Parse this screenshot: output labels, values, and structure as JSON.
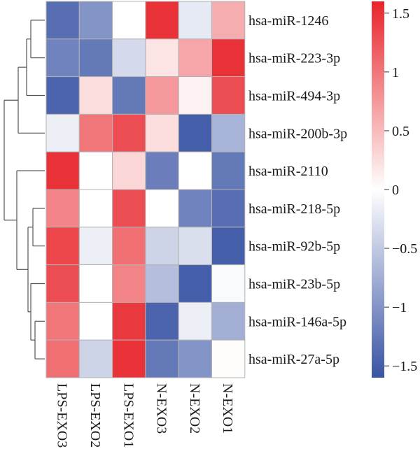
{
  "chart_data": {
    "type": "heatmap",
    "rows": [
      "hsa-miR-1246",
      "hsa-miR-223-3p",
      "hsa-miR-494-3p",
      "hsa-miR-200b-3p",
      "hsa-miR-2110",
      "hsa-miR-218-5p",
      "hsa-miR-92b-5p",
      "hsa-miR-23b-5p",
      "hsa-miR-146a-5p",
      "hsa-miR-27a-5p"
    ],
    "columns": [
      "LPS-EXO3",
      "LPS-EXO2",
      "LPS-EXO1",
      "N-EXO3",
      "N-EXO2",
      "N-EXO1"
    ],
    "values": [
      [
        -1.35,
        -1.0,
        0.0,
        1.5,
        -0.2,
        0.6
      ],
      [
        -1.15,
        -1.25,
        -0.35,
        0.2,
        0.65,
        1.5
      ],
      [
        -1.45,
        0.25,
        -1.25,
        0.75,
        0.1,
        1.3
      ],
      [
        -0.15,
        1.0,
        1.3,
        0.25,
        -1.5,
        -0.7
      ],
      [
        1.5,
        0.0,
        0.3,
        -1.2,
        0.0,
        -1.25
      ],
      [
        0.9,
        0.0,
        1.3,
        0.0,
        -1.15,
        -1.35
      ],
      [
        1.35,
        -0.15,
        1.05,
        -0.4,
        -0.3,
        -1.5
      ],
      [
        1.3,
        0.0,
        0.9,
        -0.6,
        -1.5,
        -0.05
      ],
      [
        1.0,
        0.0,
        1.45,
        -1.45,
        -0.15,
        -0.75
      ],
      [
        1.05,
        -0.4,
        1.5,
        -1.25,
        -1.0,
        0.02
      ]
    ],
    "colorbar": {
      "min": -1.6,
      "max": 1.6,
      "ticks": [
        1.5,
        1,
        0.5,
        0,
        -0.5,
        -1,
        -1.5
      ],
      "tick_labels": [
        "1.5",
        "1",
        "0.5",
        "0",
        "−0.5",
        "−1",
        "−1.5"
      ],
      "colors": {
        "low": "#3953a4",
        "mid": "#ffffff",
        "high": "#e8242a"
      }
    },
    "row_dendrogram": true,
    "grid": true,
    "legend": "right"
  }
}
